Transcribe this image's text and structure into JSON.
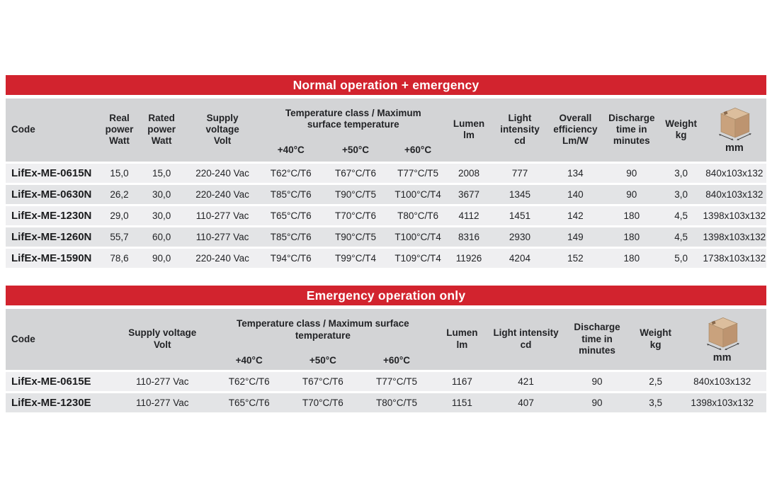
{
  "colors": {
    "banner_red": "#D2232E",
    "header_gray": "#D3D4D6",
    "row_light": "#EFEFF1",
    "row_dark": "#E3E4E6",
    "accent_blue": "#21418F"
  },
  "tables": [
    {
      "title": "Normal operation + emergency",
      "headers": {
        "code": "Code",
        "real_power": "Real\npower\nWatt",
        "rated_power": "Rated\npower\nWatt",
        "supply_voltage": "Supply\nvoltage\nVolt",
        "temp_class": "Temperature class / Maximum\nsurface temperature",
        "temp_40": "+40°C",
        "temp_50": "+50°C",
        "temp_60": "+60°C",
        "lumen": "Lumen\nlm",
        "light_intensity": "Light\nintensity\ncd",
        "overall_efficiency": "Overall\nefficiency\nLm/W",
        "discharge_time": "Discharge\ntime in\nminutes",
        "weight": "Weight\nkg",
        "dimensions_unit": "mm",
        "dimensions_icon": "package-box-icon"
      },
      "blue_cols": [
        7,
        8,
        9
      ],
      "rows": [
        [
          "LifEx-ME-0615N",
          "15,0",
          "15,0",
          "220-240 Vac",
          "T62°C/T6",
          "T67°C/T6",
          "T77°C/T5",
          "2008",
          "777",
          "134",
          "90",
          "3,0",
          "840x103x132"
        ],
        [
          "LifEx-ME-0630N",
          "26,2",
          "30,0",
          "220-240 Vac",
          "T85°C/T6",
          "T90°C/T5",
          "T100°C/T4",
          "3677",
          "1345",
          "140",
          "90",
          "3,0",
          "840x103x132"
        ],
        [
          "LifEx-ME-1230N",
          "29,0",
          "30,0",
          "110-277 Vac",
          "T65°C/T6",
          "T70°C/T6",
          "T80°C/T6",
          "4112",
          "1451",
          "142",
          "180",
          "4,5",
          "1398x103x132"
        ],
        [
          "LifEx-ME-1260N",
          "55,7",
          "60,0",
          "110-277 Vac",
          "T85°C/T6",
          "T90°C/T5",
          "T100°C/T4",
          "8316",
          "2930",
          "149",
          "180",
          "4,5",
          "1398x103x132"
        ],
        [
          "LifEx-ME-1590N",
          "78,6",
          "90,0",
          "220-240 Vac",
          "T94°C/T6",
          "T99°C/T4",
          "T109°C/T4",
          "11926",
          "4204",
          "152",
          "180",
          "5,0",
          "1738x103x132"
        ]
      ]
    },
    {
      "title": "Emergency operation only",
      "headers": {
        "code": "Code",
        "supply_voltage": "Supply voltage\nVolt",
        "temp_class": "Temperature class / Maximum surface\ntemperature",
        "temp_40": "+40°C",
        "temp_50": "+50°C",
        "temp_60": "+60°C",
        "lumen": "Lumen\nlm",
        "light_intensity": "Light intensity\ncd",
        "discharge_time": "Discharge\ntime in\nminutes",
        "weight": "Weight\nkg",
        "dimensions_unit": "mm",
        "dimensions_icon": "package-box-icon"
      },
      "blue_cols": [
        5,
        6
      ],
      "rows": [
        [
          "LifEx-ME-0615E",
          "110-277 Vac",
          "T62°C/T6",
          "T67°C/T6",
          "T77°C/T5",
          "1167",
          "421",
          "90",
          "2,5",
          "840x103x132"
        ],
        [
          "LifEx-ME-1230E",
          "110-277 Vac",
          "T65°C/T6",
          "T70°C/T6",
          "T80°C/T5",
          "1151",
          "407",
          "90",
          "3,5",
          "1398x103x132"
        ]
      ]
    }
  ]
}
